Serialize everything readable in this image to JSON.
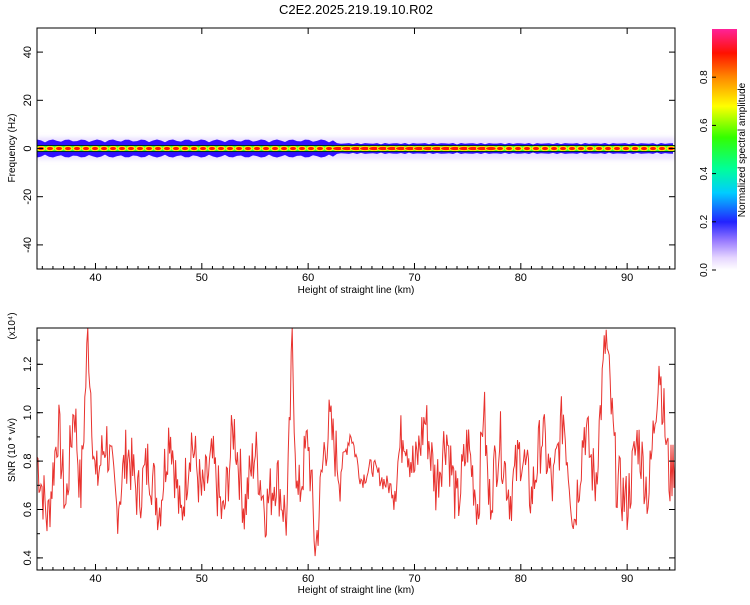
{
  "title": "C2E2.2025.219.19.10.R02",
  "chart_data": [
    {
      "type": "heatmap",
      "xlabel": "Height of straight line (km)",
      "ylabel": "Frequency (Hz)",
      "xlim": [
        34.5,
        94.5
      ],
      "ylim": [
        -50,
        50
      ],
      "xticks": [
        40,
        50,
        60,
        70,
        80,
        90
      ],
      "yticks": [
        -40,
        -20,
        0,
        20,
        40
      ],
      "colorbar": {
        "label": "Normalized spectral amplitude",
        "range": [
          0,
          1
        ],
        "ticks": [
          "0.0",
          "0.2",
          "0.4",
          "0.6",
          "0.8"
        ]
      },
      "ridge": {
        "frequency_hz": 0,
        "x_range": [
          34.5,
          94.5
        ],
        "peak_amplitude": 1.0
      }
    },
    {
      "type": "line",
      "xlabel": "Height of straight line (km)",
      "ylabel": "SNR (10 * v/v)",
      "y_multiplier": "(x10⁴)",
      "xlim": [
        34.5,
        94.5
      ],
      "ylim": [
        0.35,
        1.35
      ],
      "xticks": [
        40,
        50,
        60,
        70,
        80,
        90
      ],
      "yticks": [
        "0.4",
        "0.6",
        "0.8",
        "1.0",
        "1.2"
      ],
      "line_color": "#e8322e",
      "x": [
        34.5,
        35.5,
        36.5,
        37.2,
        38,
        38.6,
        39.3,
        40,
        41,
        42,
        43,
        44,
        45,
        46,
        47,
        48,
        49,
        50,
        51,
        52,
        53,
        54,
        55,
        56,
        57,
        58,
        58.5,
        59,
        60,
        60.7,
        61.5,
        62,
        63,
        64,
        65,
        66,
        67,
        68,
        69,
        70,
        71,
        72,
        73,
        74,
        75,
        76,
        76.5,
        77,
        78,
        79,
        80,
        81,
        82,
        83,
        84,
        85,
        86,
        87,
        88,
        89,
        90,
        91,
        92,
        93,
        94,
        94.5
      ],
      "y": [
        0.82,
        0.55,
        0.95,
        0.6,
        1.05,
        0.65,
        1.33,
        0.7,
        0.9,
        0.6,
        0.85,
        0.65,
        0.8,
        0.6,
        0.95,
        0.55,
        0.9,
        0.65,
        0.8,
        0.55,
        0.95,
        0.6,
        0.85,
        0.6,
        0.75,
        0.55,
        1.27,
        0.62,
        0.9,
        0.42,
        0.85,
        0.95,
        0.75,
        0.92,
        0.72,
        0.78,
        0.72,
        0.68,
        0.95,
        0.75,
        0.98,
        0.7,
        0.92,
        0.6,
        0.88,
        0.6,
        1.05,
        0.62,
        0.9,
        0.65,
        0.85,
        0.65,
        0.92,
        0.68,
        1.0,
        0.55,
        0.95,
        0.7,
        1.32,
        0.72,
        0.62,
        0.9,
        0.65,
        1.22,
        0.72,
        0.82
      ]
    }
  ]
}
